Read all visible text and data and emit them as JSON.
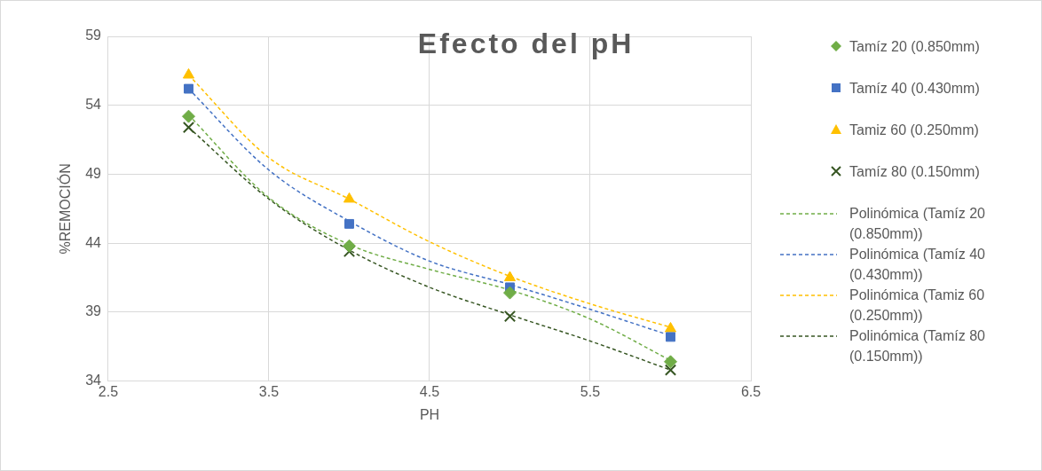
{
  "chart_data": {
    "type": "scatter",
    "title": "Efecto del pH",
    "xlabel": "PH",
    "ylabel": "%REMOCIÓN",
    "x": [
      3,
      4,
      5,
      6
    ],
    "xlim": [
      2.5,
      6.5
    ],
    "xticks": [
      2.5,
      3.5,
      4.5,
      5.5,
      6.5
    ],
    "ylim": [
      34,
      59
    ],
    "yticks": [
      34,
      39,
      44,
      49,
      54,
      59
    ],
    "grid": true,
    "legend": "right",
    "series": [
      {
        "name": "Tamíz 20 (0.850mm)",
        "marker": "diamond",
        "color": "#70ad47",
        "values": [
          53.2,
          43.8,
          40.4,
          35.4
        ]
      },
      {
        "name": "Tamíz 40 (0.430mm)",
        "marker": "square",
        "color": "#4472c4",
        "values": [
          55.2,
          45.4,
          40.8,
          37.2
        ]
      },
      {
        "name": "Tamiz 60 (0.250mm)",
        "marker": "triangle",
        "color": "#ffc000",
        "values": [
          56.2,
          47.2,
          41.5,
          37.8
        ]
      },
      {
        "name": "Tamíz 80 (0.150mm)",
        "marker": "cross",
        "color": "#375623",
        "values": [
          52.4,
          43.4,
          38.7,
          34.8
        ]
      },
      {
        "name": "Polinómica (Tamíz 20 (0.850mm))",
        "type": "line",
        "line_style": "dashed",
        "marker": "none",
        "color": "#70ad47",
        "x": [
          3,
          3.5,
          4,
          4.5,
          5,
          5.5,
          6
        ],
        "values": [
          53.3,
          47.3,
          43.9,
          42.1,
          40.6,
          38.5,
          35.5
        ]
      },
      {
        "name": "Polinómica (Tamíz 40 (0.430mm))",
        "type": "line",
        "line_style": "dashed",
        "marker": "none",
        "color": "#4472c4",
        "x": [
          3,
          3.5,
          4,
          4.5,
          5,
          5.5,
          6
        ],
        "values": [
          55.2,
          49.3,
          45.6,
          42.7,
          41.0,
          39.2,
          37.3
        ]
      },
      {
        "name": "Polinómica (Tamiz 60 (0.250mm))",
        "type": "line",
        "line_style": "dashed",
        "marker": "none",
        "color": "#ffc000",
        "x": [
          3,
          3.5,
          4,
          4.5,
          5,
          5.5,
          6
        ],
        "values": [
          56.2,
          50.2,
          47.2,
          44.1,
          41.6,
          39.6,
          37.9
        ]
      },
      {
        "name": "Polinómica (Tamíz 80 (0.150mm))",
        "type": "line",
        "line_style": "dashed",
        "marker": "none",
        "color": "#375623",
        "x": [
          3,
          3.5,
          4,
          4.5,
          5,
          5.5,
          6
        ],
        "values": [
          52.4,
          47.2,
          43.5,
          40.8,
          38.8,
          36.9,
          34.8
        ]
      }
    ]
  }
}
